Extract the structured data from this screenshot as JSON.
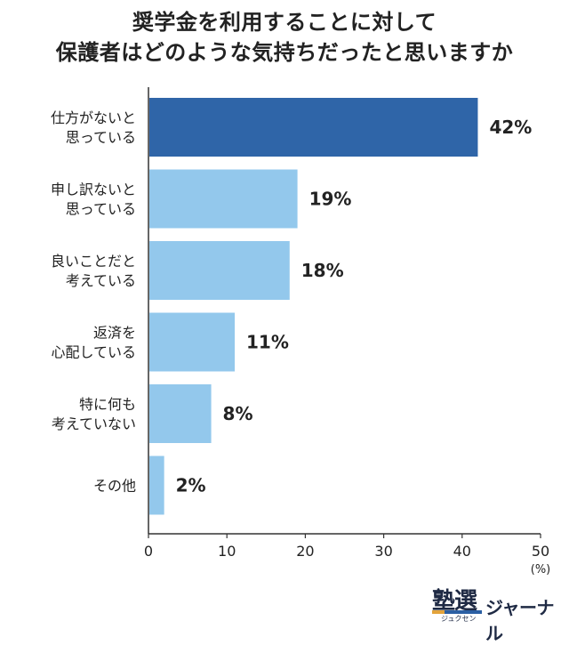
{
  "chart_data": {
    "type": "bar",
    "orientation": "horizontal",
    "title": [
      "奨学金を利用することに対して",
      "保護者はどのような気持ちだったと思いますか"
    ],
    "categories": [
      [
        "仕方がないと",
        "思っている"
      ],
      [
        "申し訳ないと",
        "思っている"
      ],
      [
        "良いことだと",
        "考えている"
      ],
      [
        "返済を",
        "心配している"
      ],
      [
        "特に何も",
        "考えていない"
      ],
      [
        "その他"
      ]
    ],
    "values": [
      42,
      19,
      18,
      11,
      8,
      2
    ],
    "value_labels": [
      "42%",
      "19%",
      "18%",
      "11%",
      "8%",
      "2%"
    ],
    "xlim": [
      0,
      50
    ],
    "xticks": [
      "0",
      "10",
      "20",
      "30",
      "40",
      "50"
    ],
    "xunit": "(%)",
    "grid": false,
    "colors": {
      "highlight": "#2f65a8",
      "default": "#93c8ec",
      "axis": "#333333"
    }
  },
  "branding": {
    "logo_kanji": "塾選",
    "logo_kana": "ジュクセン",
    "logo_text": "ジャーナル"
  }
}
